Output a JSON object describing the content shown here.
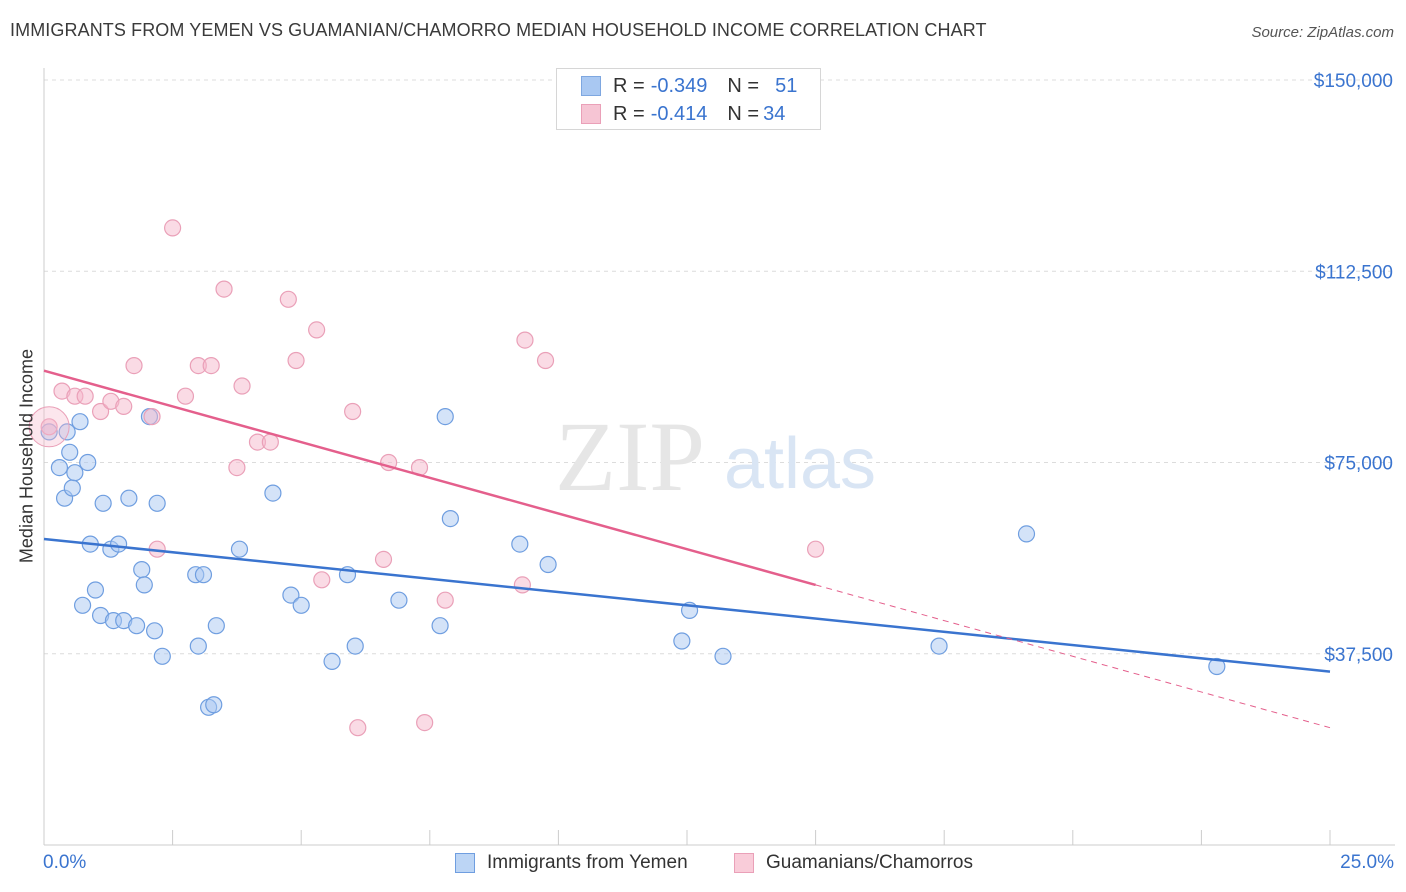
{
  "title": "IMMIGRANTS FROM YEMEN VS GUAMANIAN/CHAMORRO MEDIAN HOUSEHOLD INCOME CORRELATION CHART",
  "source": "Source: ZipAtlas.com",
  "watermark": {
    "zip": "ZIP",
    "atlas": "atlas"
  },
  "legend": {
    "rows": [
      {
        "r_label": "R = ",
        "r_value": "-0.349",
        "n_label": "N = ",
        "n_value": "51",
        "color": "#a9c8f2"
      },
      {
        "r_label": "R = ",
        "r_value": "-0.414",
        "n_label": "N = ",
        "n_value": "34",
        "color": "#f6b8cb"
      }
    ]
  },
  "chart_data": {
    "type": "scatter",
    "title": "IMMIGRANTS FROM YEMEN VS GUAMANIAN/CHAMORRO MEDIAN HOUSEHOLD INCOME CORRELATION CHART",
    "xlabel": "",
    "ylabel": "Median Household Income",
    "xlim": [
      0,
      25
    ],
    "ylim": [
      0,
      155000
    ],
    "x_tick_labels": [
      "0.0%",
      "25.0%"
    ],
    "y_ticks": [
      37500,
      75000,
      112500,
      150000
    ],
    "y_tick_labels": [
      "$37,500",
      "$75,000",
      "$112,500",
      "$150,000"
    ],
    "grid": "horizontal dashed",
    "legend_position": "top-center and bottom",
    "series": [
      {
        "name": "Immigrants from Yemen",
        "color": "#3a74cf",
        "fill": "#a9c8f2",
        "trend": {
          "x": [
            0,
            25
          ],
          "y": [
            60000,
            34000
          ]
        },
        "points": [
          [
            0.1,
            81000
          ],
          [
            0.3,
            74000
          ],
          [
            0.4,
            68000
          ],
          [
            0.45,
            81000
          ],
          [
            0.55,
            70000
          ],
          [
            0.5,
            77000
          ],
          [
            0.6,
            73000
          ],
          [
            0.7,
            83000
          ],
          [
            0.75,
            47000
          ],
          [
            0.85,
            75000
          ],
          [
            0.9,
            59000
          ],
          [
            1.0,
            50000
          ],
          [
            1.1,
            45000
          ],
          [
            1.15,
            67000
          ],
          [
            1.3,
            58000
          ],
          [
            1.35,
            44000
          ],
          [
            1.45,
            59000
          ],
          [
            1.55,
            44000
          ],
          [
            1.65,
            68000
          ],
          [
            1.8,
            43000
          ],
          [
            1.9,
            54000
          ],
          [
            1.95,
            51000
          ],
          [
            2.05,
            84000
          ],
          [
            2.15,
            42000
          ],
          [
            2.2,
            67000
          ],
          [
            2.3,
            37000
          ],
          [
            2.95,
            53000
          ],
          [
            3.0,
            39000
          ],
          [
            3.1,
            53000
          ],
          [
            3.2,
            27000
          ],
          [
            3.3,
            27500
          ],
          [
            3.35,
            43000
          ],
          [
            3.8,
            58000
          ],
          [
            4.45,
            69000
          ],
          [
            4.8,
            49000
          ],
          [
            5.0,
            47000
          ],
          [
            5.6,
            36000
          ],
          [
            5.9,
            53000
          ],
          [
            6.05,
            39000
          ],
          [
            6.9,
            48000
          ],
          [
            7.7,
            43000
          ],
          [
            7.8,
            84000
          ],
          [
            7.9,
            64000
          ],
          [
            9.25,
            59000
          ],
          [
            9.8,
            55000
          ],
          [
            12.4,
            40000
          ],
          [
            12.55,
            46000
          ],
          [
            13.2,
            37000
          ],
          [
            17.4,
            39000
          ],
          [
            19.1,
            61000
          ],
          [
            22.8,
            35000
          ]
        ]
      },
      {
        "name": "Guamanians/Chamorros",
        "color": "#e45f8c",
        "fill": "#f6b8cb",
        "trend": {
          "x": [
            0,
            15
          ],
          "y": [
            93000,
            51000
          ]
        },
        "trend_extension": {
          "x": [
            15,
            25
          ],
          "y": [
            51000,
            23000
          ]
        },
        "points": [
          [
            0.1,
            82000
          ],
          [
            0.35,
            89000
          ],
          [
            0.6,
            88000
          ],
          [
            0.8,
            88000
          ],
          [
            1.1,
            85000
          ],
          [
            1.3,
            87000
          ],
          [
            1.55,
            86000
          ],
          [
            1.75,
            94000
          ],
          [
            2.1,
            84000
          ],
          [
            2.2,
            58000
          ],
          [
            2.5,
            121000
          ],
          [
            2.75,
            88000
          ],
          [
            3.0,
            94000
          ],
          [
            3.25,
            94000
          ],
          [
            3.5,
            109000
          ],
          [
            3.75,
            74000
          ],
          [
            3.85,
            90000
          ],
          [
            4.15,
            79000
          ],
          [
            4.4,
            79000
          ],
          [
            4.75,
            107000
          ],
          [
            4.9,
            95000
          ],
          [
            5.3,
            101000
          ],
          [
            5.4,
            52000
          ],
          [
            6.0,
            85000
          ],
          [
            6.1,
            23000
          ],
          [
            6.6,
            56000
          ],
          [
            6.7,
            75000
          ],
          [
            7.3,
            74000
          ],
          [
            7.4,
            24000
          ],
          [
            7.8,
            48000
          ],
          [
            9.3,
            51000
          ],
          [
            9.35,
            99000
          ],
          [
            9.75,
            95000
          ],
          [
            15.0,
            58000
          ]
        ]
      }
    ]
  },
  "bottom_legend": {
    "items": [
      {
        "label": "Immigrants from Yemen",
        "color": "#a9c8f2",
        "border": "#3a74cf"
      },
      {
        "label": "Guamanians/Chamorros",
        "color": "#f6b8cb",
        "border": "#e45f8c"
      }
    ]
  }
}
